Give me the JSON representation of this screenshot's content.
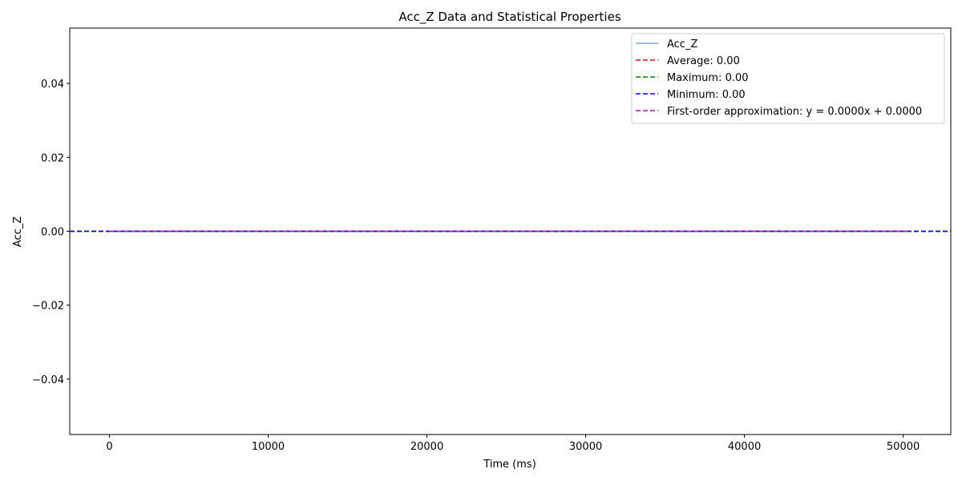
{
  "chart_data": {
    "type": "line",
    "title": "Acc_Z Data and Statistical Properties",
    "xlabel": "Time (ms)",
    "ylabel": "Acc_Z",
    "xlim": [
      -2500,
      53000
    ],
    "ylim": [
      -0.055,
      0.055
    ],
    "x_ticks": [
      0,
      10000,
      20000,
      30000,
      40000,
      50000
    ],
    "x_tick_labels": [
      "0",
      "10000",
      "20000",
      "30000",
      "40000",
      "50000"
    ],
    "y_ticks": [
      -0.04,
      -0.02,
      0.0,
      0.02,
      0.04
    ],
    "y_tick_labels": [
      "−0.04",
      "−0.02",
      "0.00",
      "0.02",
      "0.04"
    ],
    "grid": false,
    "legend_position": "top-right",
    "series": [
      {
        "name": "Acc_Z",
        "kind": "data-line",
        "color": "#1f77b4",
        "x": [
          0,
          10000,
          20000,
          30000,
          40000,
          50500
        ],
        "y": [
          0,
          0,
          0,
          0,
          0,
          0
        ]
      },
      {
        "name": "Average: 0.00",
        "kind": "hline",
        "value": 0.0,
        "color": "#ff0000"
      },
      {
        "name": "Maximum: 0.00",
        "kind": "hline",
        "value": 0.0,
        "color": "#008000"
      },
      {
        "name": "Minimum: 0.00",
        "kind": "hline",
        "value": 0.0,
        "color": "#0000ff"
      },
      {
        "name": "First-order approximation: y = 0.0000x + 0.0000",
        "kind": "fit-line",
        "slope": 0.0,
        "intercept": 0.0,
        "x_range": [
          0,
          50500
        ],
        "color": "#bf00bf"
      }
    ]
  }
}
